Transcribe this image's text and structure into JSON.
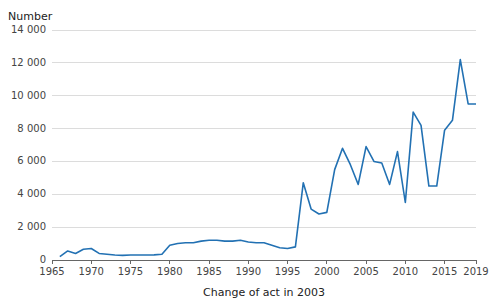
{
  "chart_data": {
    "type": "line",
    "xlabel": "Change of act in 2003",
    "ylabel": "Number",
    "x": [
      1966,
      1967,
      1968,
      1969,
      1970,
      1971,
      1972,
      1973,
      1974,
      1975,
      1976,
      1977,
      1978,
      1979,
      1980,
      1981,
      1982,
      1983,
      1984,
      1985,
      1986,
      1987,
      1988,
      1989,
      1990,
      1991,
      1992,
      1993,
      1994,
      1995,
      1996,
      1997,
      1998,
      1999,
      2000,
      2001,
      2002,
      2003,
      2004,
      2005,
      2006,
      2007,
      2008,
      2009,
      2010,
      2011,
      2012,
      2013,
      2014,
      2015,
      2016,
      2017,
      2018,
      2019
    ],
    "values": [
      200,
      550,
      400,
      650,
      700,
      400,
      350,
      300,
      280,
      300,
      300,
      300,
      310,
      350,
      900,
      1000,
      1050,
      1050,
      1150,
      1200,
      1200,
      1150,
      1150,
      1200,
      1100,
      1050,
      1050,
      900,
      750,
      700,
      800,
      4700,
      3100,
      2800,
      2900,
      5500,
      6800,
      5800,
      4600,
      6900,
      6000,
      5900,
      4600,
      6600,
      3500,
      9000,
      8200,
      4500,
      4500,
      7900,
      8500,
      12200,
      9500,
      9500
    ],
    "color": "#2271b3",
    "xlim": [
      1965,
      2019
    ],
    "ylim": [
      0,
      14000
    ],
    "xticks": [
      1965,
      1970,
      1975,
      1980,
      1985,
      1990,
      1995,
      2000,
      2005,
      2010,
      2015,
      2019
    ],
    "yticks": [
      0,
      {
        "value": 2000,
        "label": "2 000"
      },
      {
        "value": 4000,
        "label": "4 000"
      },
      {
        "value": 6000,
        "label": "6 000"
      },
      {
        "value": 8000,
        "label": "8 000"
      },
      {
        "value": 10000,
        "label": "10 000"
      },
      {
        "value": 12000,
        "label": "12 000"
      },
      {
        "value": 14000,
        "label": "14 000"
      }
    ],
    "grid": true
  }
}
